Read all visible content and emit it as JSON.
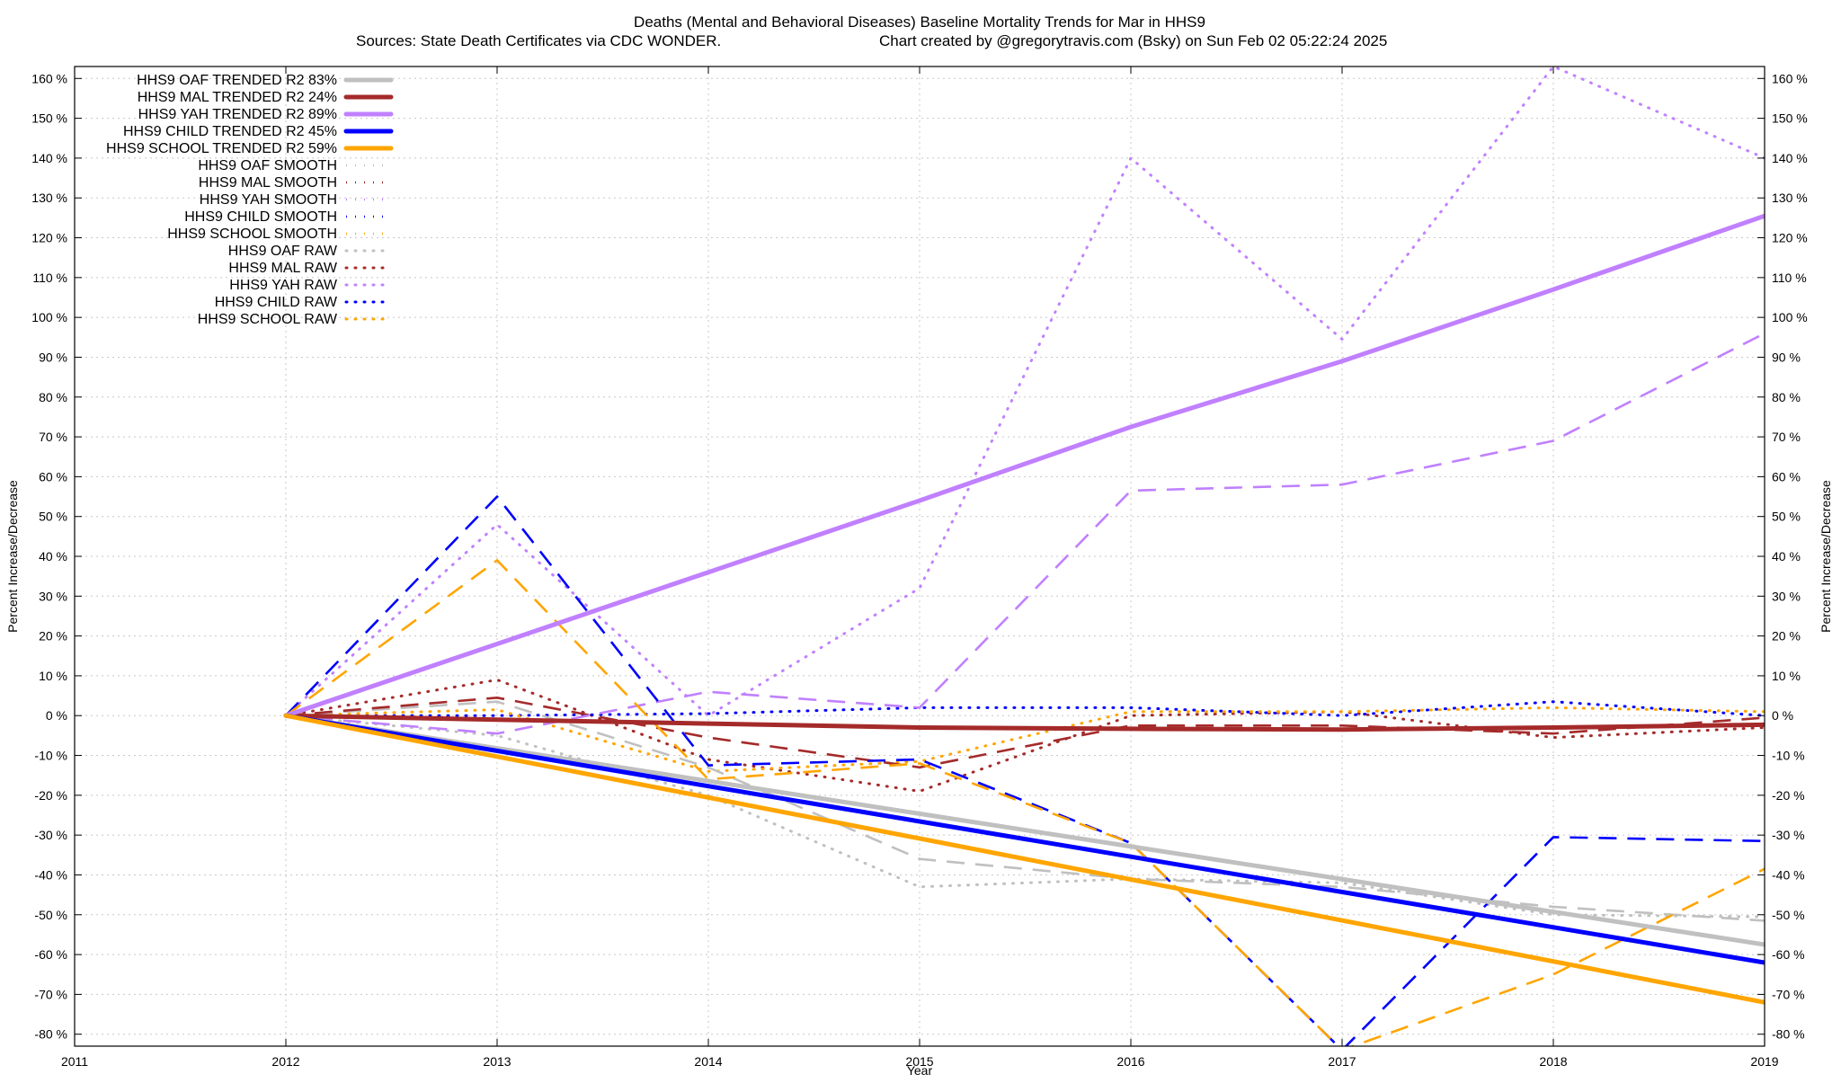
{
  "chart_data": {
    "type": "line",
    "title_line1": "Deaths (Mental and Behavioral Diseases)  Baseline Mortality Trends for Mar in HHS9",
    "title_line2_left": "Sources: State Death Certificates via CDC WONDER.",
    "title_line2_right": "Chart created by @gregorytravis.com (Bsky) on Sun Feb 02 05:22:24 2025",
    "xlabel": "Year",
    "ylabel_left": "Percent Increase/Decrease",
    "ylabel_right": "Percent Increase/Decrease",
    "xlim": [
      2011,
      2019
    ],
    "ylim": [
      -83,
      163
    ],
    "x_ticks": [
      "2011",
      "2012",
      "2013",
      "2014",
      "2015",
      "2016",
      "2017",
      "2018",
      "2019"
    ],
    "y_ticks": [
      "160 %",
      "150 %",
      "140 %",
      "130 %",
      "120 %",
      "110 %",
      "100 %",
      "90 %",
      "80 %",
      "70 %",
      "60 %",
      "50 %",
      "40 %",
      "30 %",
      "20 %",
      "10 %",
      "0 %",
      "-10 %",
      "-20 %",
      "-30 %",
      "-40 %",
      "-50 %",
      "-60 %",
      "-70 %",
      "-80 %"
    ],
    "y_tick_values": [
      160,
      150,
      140,
      130,
      120,
      110,
      100,
      90,
      80,
      70,
      60,
      50,
      40,
      30,
      20,
      10,
      0,
      -10,
      -20,
      -30,
      -40,
      -50,
      -60,
      -70,
      -80
    ],
    "grid": true,
    "legend_position": "top-left",
    "series": [
      {
        "name": "HHS9 OAF TRENDED R2  83%",
        "style": "solid",
        "color": "#c0c0c0",
        "x": [
          2012,
          2019
        ],
        "y": [
          0,
          -57.5
        ]
      },
      {
        "name": "HHS9 MAL TRENDED R2  24%",
        "style": "solid",
        "color": "#a52a2a",
        "x": [
          2012,
          2013,
          2014,
          2015,
          2016,
          2017,
          2018,
          2019
        ],
        "y": [
          0,
          -1,
          -2,
          -3,
          -3.3,
          -3.5,
          -3,
          -2.3
        ]
      },
      {
        "name": "HHS9 YAH TRENDED R2  89%",
        "style": "solid",
        "color": "#c080ff",
        "x": [
          2012,
          2013,
          2014,
          2015,
          2016,
          2017,
          2018,
          2019
        ],
        "y": [
          0,
          18,
          36,
          54,
          72.5,
          89,
          107,
          125.5
        ]
      },
      {
        "name": "HHS9 CHILD TRENDED R2  45%",
        "style": "solid",
        "color": "#0000ff",
        "x": [
          2012,
          2019
        ],
        "y": [
          0,
          -62
        ]
      },
      {
        "name": "HHS9 SCHOOL TRENDED R2  59%",
        "style": "solid",
        "color": "#ffa500",
        "x": [
          2012,
          2019
        ],
        "y": [
          0,
          -72
        ]
      },
      {
        "name": "HHS9 OAF SMOOTH",
        "style": "dashed",
        "color": "#c0c0c0",
        "x": [
          2012,
          2013,
          2014,
          2015,
          2016,
          2017,
          2018,
          2019
        ],
        "y": [
          0,
          3.5,
          -13,
          -36,
          -41,
          -43,
          -48,
          -51.5
        ]
      },
      {
        "name": "HHS9 MAL SMOOTH",
        "style": "dashed",
        "color": "#a52a2a",
        "x": [
          2012,
          2013,
          2014,
          2015,
          2016,
          2017,
          2018,
          2019
        ],
        "y": [
          0,
          4.5,
          -5.5,
          -13,
          -2.5,
          -2.5,
          -4.5,
          -0.5
        ]
      },
      {
        "name": "HHS9 YAH SMOOTH",
        "style": "dashed",
        "color": "#c080ff",
        "x": [
          2012,
          2013,
          2014,
          2015,
          2016,
          2017,
          2018,
          2019
        ],
        "y": [
          0,
          -4.5,
          6,
          2,
          56.5,
          58,
          69,
          96
        ]
      },
      {
        "name": "HHS9 CHILD SMOOTH",
        "style": "dashed",
        "color": "#0000ff",
        "x": [
          2012,
          2013,
          2014,
          2015,
          2016,
          2017,
          2018,
          2019
        ],
        "y": [
          0,
          55,
          -12.5,
          -11,
          -32,
          -84,
          -30.5,
          -31.5
        ]
      },
      {
        "name": "HHS9 SCHOOL SMOOTH",
        "style": "dashed",
        "color": "#ffa500",
        "x": [
          2012,
          2013,
          2014,
          2015,
          2016,
          2017,
          2018,
          2019
        ],
        "y": [
          0,
          39,
          -16,
          -12,
          -32,
          -84,
          -65,
          -38.5
        ]
      },
      {
        "name": "HHS9 OAF RAW",
        "style": "dotted",
        "color": "#c0c0c0",
        "x": [
          2012,
          2013,
          2014,
          2015,
          2016,
          2017,
          2018,
          2019
        ],
        "y": [
          0,
          -5,
          -20,
          -43,
          -41,
          -42,
          -50,
          -50.5
        ]
      },
      {
        "name": "HHS9 MAL RAW",
        "style": "dotted",
        "color": "#a52a2a",
        "x": [
          2012,
          2013,
          2014,
          2015,
          2016,
          2017,
          2018,
          2019
        ],
        "y": [
          0,
          9,
          -11,
          -19,
          0,
          1,
          -5.5,
          -3
        ]
      },
      {
        "name": "HHS9 YAH RAW",
        "style": "dotted",
        "color": "#c080ff",
        "x": [
          2012,
          2013,
          2014,
          2015,
          2016,
          2017,
          2018,
          2019
        ],
        "y": [
          0,
          48,
          0,
          32,
          140,
          94.5,
          163,
          140
        ]
      },
      {
        "name": "HHS9 CHILD RAW",
        "style": "dotted",
        "color": "#0000ff",
        "x": [
          2012,
          2013,
          2014,
          2015,
          2016,
          2017,
          2018,
          2019
        ],
        "y": [
          0,
          0,
          0.5,
          2,
          2,
          0,
          3.5,
          0
        ]
      },
      {
        "name": "HHS9 SCHOOL RAW",
        "style": "dotted",
        "color": "#ffa500",
        "x": [
          2012,
          2013,
          2014,
          2015,
          2016,
          2017,
          2018,
          2019
        ],
        "y": [
          0,
          1.5,
          -14,
          -11.5,
          1,
          1,
          2,
          1
        ]
      }
    ]
  }
}
